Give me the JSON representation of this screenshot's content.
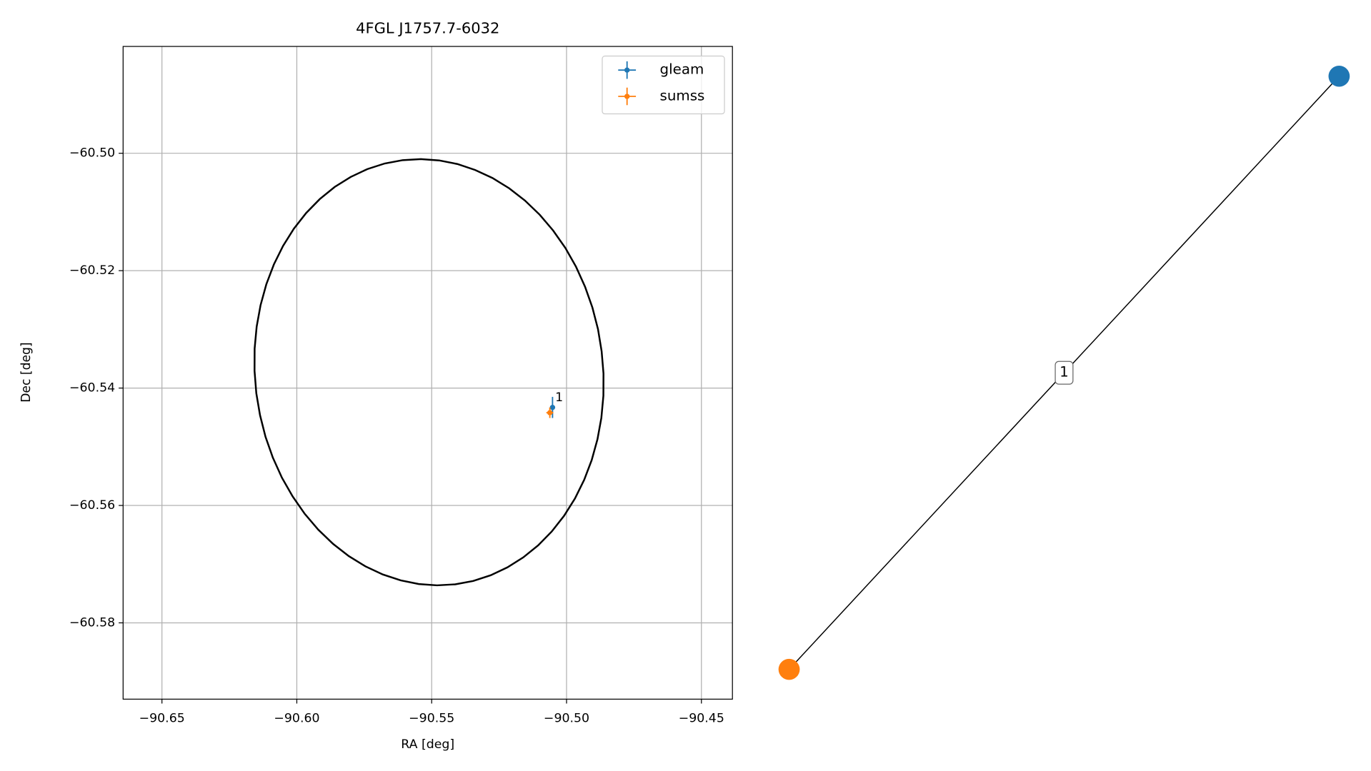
{
  "chart_data": [
    {
      "type": "scatter",
      "title": "4FGL J1757.7-6032",
      "x_label": "RA [deg]",
      "y_label": "Dec [deg]",
      "xlim": [
        -90.6644,
        -90.4385
      ],
      "ylim": [
        -60.593,
        -60.4818
      ],
      "xticks": [
        {
          "value": -90.65,
          "label": "−90.65"
        },
        {
          "value": -90.6,
          "label": "−90.60"
        },
        {
          "value": -90.55,
          "label": "−90.55"
        },
        {
          "value": -90.5,
          "label": "−90.50"
        },
        {
          "value": -90.45,
          "label": "−90.45"
        }
      ],
      "yticks": [
        {
          "value": -60.58,
          "label": "−60.58"
        },
        {
          "value": -60.56,
          "label": "−60.56"
        },
        {
          "value": -60.54,
          "label": "−60.54"
        },
        {
          "value": -60.52,
          "label": "−60.52"
        },
        {
          "value": -60.5,
          "label": "−60.50"
        }
      ],
      "grid": true,
      "legend": "upper right",
      "series": [
        {
          "name": "gleam",
          "color": "#1f77b4",
          "x": [
            -90.5052
          ],
          "y": [
            -60.5433
          ],
          "xerr": [
            0.0005
          ],
          "yerr": [
            0.0018
          ]
        },
        {
          "name": "sumss",
          "color": "#ff7f0e",
          "x": [
            -90.5062
          ],
          "y": [
            -60.5442
          ],
          "xerr": [
            0.0013
          ],
          "yerr": [
            0.0009
          ]
        }
      ],
      "annotations": [
        {
          "text": "1"
        }
      ],
      "ellipse": {
        "center": [
          -90.551,
          -60.5373
        ],
        "width": 0.129,
        "height": 0.0728,
        "angle": -7,
        "color": "#000000"
      }
    },
    {
      "type": "network",
      "nodes": [
        {
          "color": "#1f77b4"
        },
        {
          "color": "#ff7f0e"
        }
      ],
      "edges": [
        {
          "source": 0,
          "target": 1,
          "label": "1",
          "color": "#000000"
        }
      ]
    }
  ]
}
